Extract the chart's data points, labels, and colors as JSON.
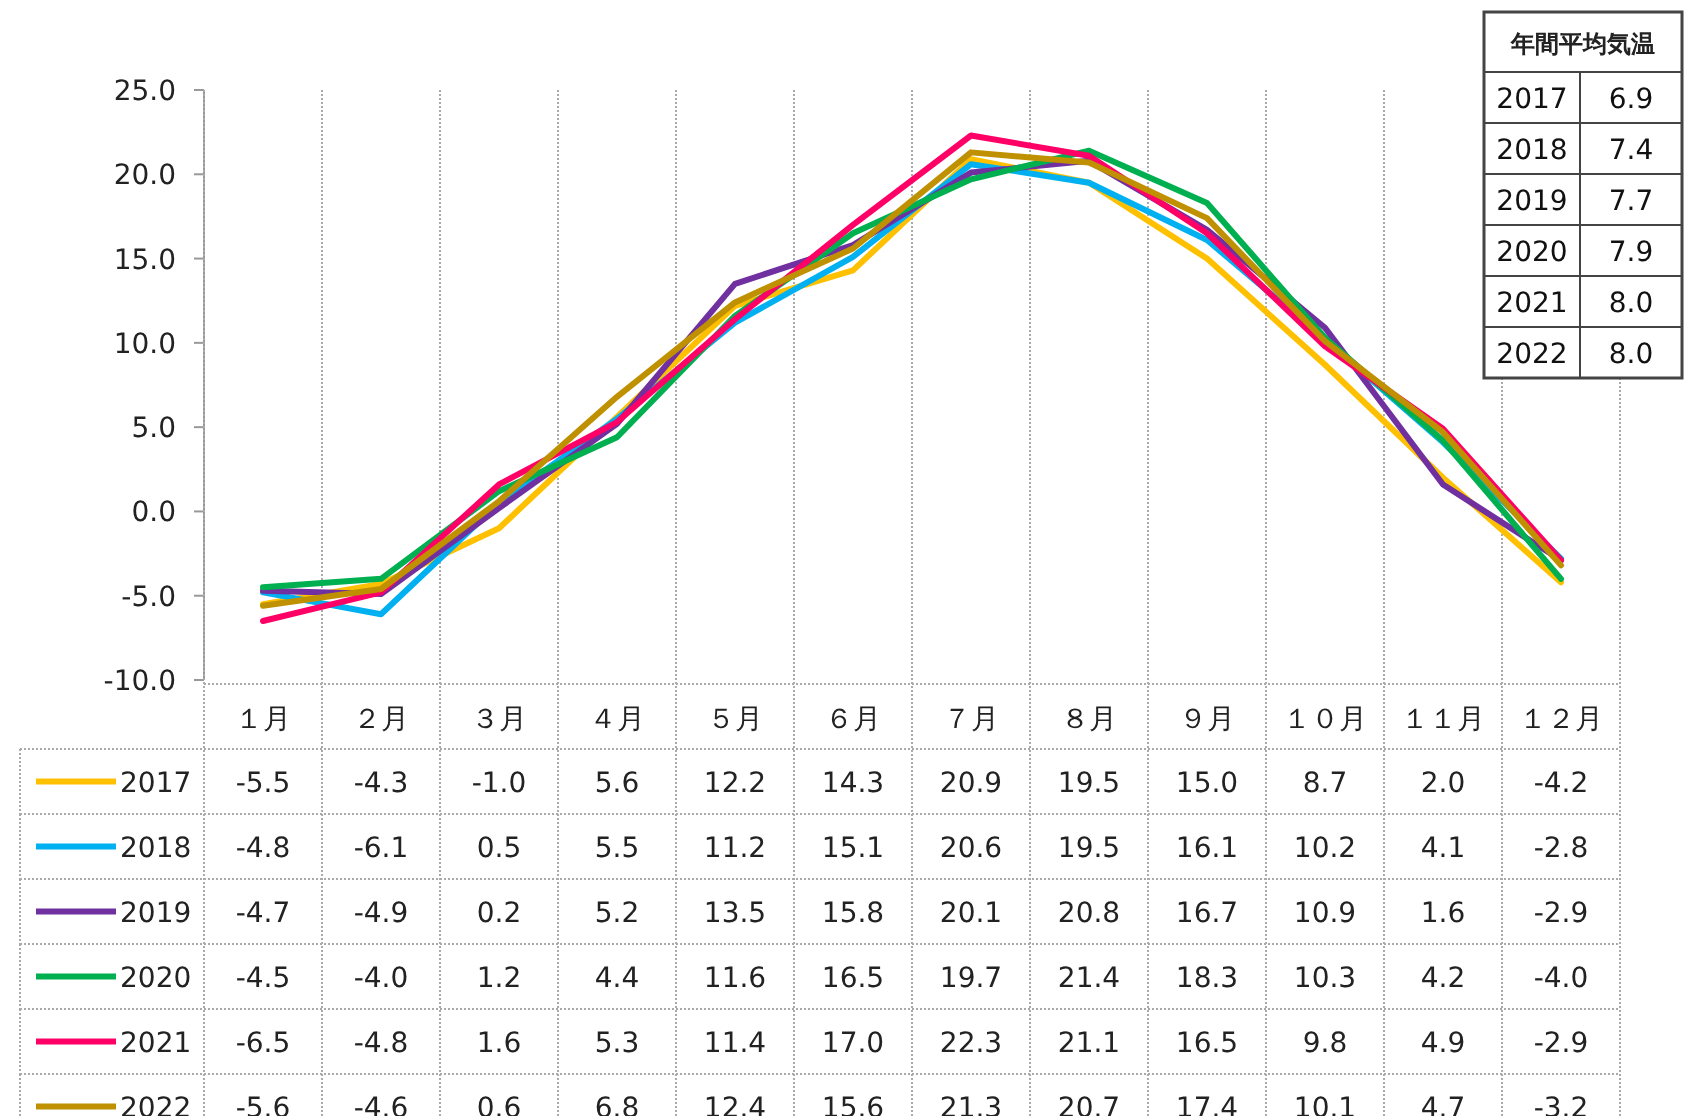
{
  "chart_data": [
    {
      "type": "line",
      "categories": [
        "１月",
        "２月",
        "３月",
        "４月",
        "５月",
        "６月",
        "７月",
        "８月",
        "９月",
        "１０月",
        "１１月",
        "１２月"
      ],
      "ylim": [
        -10,
        25
      ],
      "yticks": [
        {
          "value": -10,
          "label": "-10.0"
        },
        {
          "value": -5,
          "label": "-5.0"
        },
        {
          "value": 0,
          "label": "0.0"
        },
        {
          "value": 5,
          "label": "5.0"
        },
        {
          "value": 10,
          "label": "10.0"
        },
        {
          "value": 15,
          "label": "15.0"
        },
        {
          "value": 20,
          "label": "20.0"
        },
        {
          "value": 25,
          "label": "25.0"
        }
      ],
      "legend": "bottom left",
      "data_labels": true,
      "marker": "none",
      "line_style": "solid",
      "series": [
        {
          "name": "2017",
          "color": "#ffc000",
          "values": [
            -5.5,
            -4.3,
            -1.0,
            5.6,
            12.2,
            14.3,
            20.9,
            19.5,
            15.0,
            8.7,
            2.0,
            -4.2
          ],
          "value_labels": [
            "-5.5",
            "-4.3",
            "-1.0",
            "5.6",
            "12.2",
            "14.3",
            "20.9",
            "19.5",
            "15.0",
            "8.7",
            "2.0",
            "-4.2"
          ]
        },
        {
          "name": "2018",
          "color": "#00b0f0",
          "values": [
            -4.8,
            -6.1,
            0.5,
            5.5,
            11.2,
            15.1,
            20.6,
            19.5,
            16.1,
            10.2,
            4.1,
            -2.8
          ],
          "value_labels": [
            "-4.8",
            "-6.1",
            "0.5",
            "5.5",
            "11.2",
            "15.1",
            "20.6",
            "19.5",
            "16.1",
            "10.2",
            "4.1",
            "-2.8"
          ]
        },
        {
          "name": "2019",
          "color": "#7030a0",
          "values": [
            -4.7,
            -4.9,
            0.2,
            5.2,
            13.5,
            15.8,
            20.1,
            20.8,
            16.7,
            10.9,
            1.6,
            -2.9
          ],
          "value_labels": [
            "-4.7",
            "-4.9",
            "0.2",
            "5.2",
            "13.5",
            "15.8",
            "20.1",
            "20.8",
            "16.7",
            "10.9",
            "1.6",
            "-2.9"
          ]
        },
        {
          "name": "2020",
          "color": "#00b050",
          "values": [
            -4.5,
            -4.0,
            1.2,
            4.4,
            11.6,
            16.5,
            19.7,
            21.4,
            18.3,
            10.3,
            4.2,
            -4.0
          ],
          "value_labels": [
            "-4.5",
            "-4.0",
            "1.2",
            "4.4",
            "11.6",
            "16.5",
            "19.7",
            "21.4",
            "18.3",
            "10.3",
            "4.2",
            "-4.0"
          ]
        },
        {
          "name": "2021",
          "color": "#ff0066",
          "values": [
            -6.5,
            -4.8,
            1.6,
            5.3,
            11.4,
            17.0,
            22.3,
            21.1,
            16.5,
            9.8,
            4.9,
            -2.9
          ],
          "value_labels": [
            "-6.5",
            "-4.8",
            "1.6",
            "5.3",
            "11.4",
            "17.0",
            "22.3",
            "21.1",
            "16.5",
            "9.8",
            "4.9",
            "-2.9"
          ]
        },
        {
          "name": "2022",
          "color": "#bf9000",
          "values": [
            -5.6,
            -4.6,
            0.6,
            6.8,
            12.4,
            15.6,
            21.3,
            20.7,
            17.4,
            10.1,
            4.7,
            -3.2
          ],
          "value_labels": [
            "-5.6",
            "-4.6",
            "0.6",
            "6.8",
            "12.4",
            "15.6",
            "21.3",
            "20.7",
            "17.4",
            "10.1",
            "4.7",
            "-3.2"
          ]
        }
      ],
      "annotations": [
        "年間平均気温",
        "2017",
        "6.9",
        "2018",
        "7.4",
        "2019",
        "7.7",
        "2020",
        "7.9",
        "2021",
        "8.0",
        "2022",
        "8.0"
      ]
    }
  ]
}
